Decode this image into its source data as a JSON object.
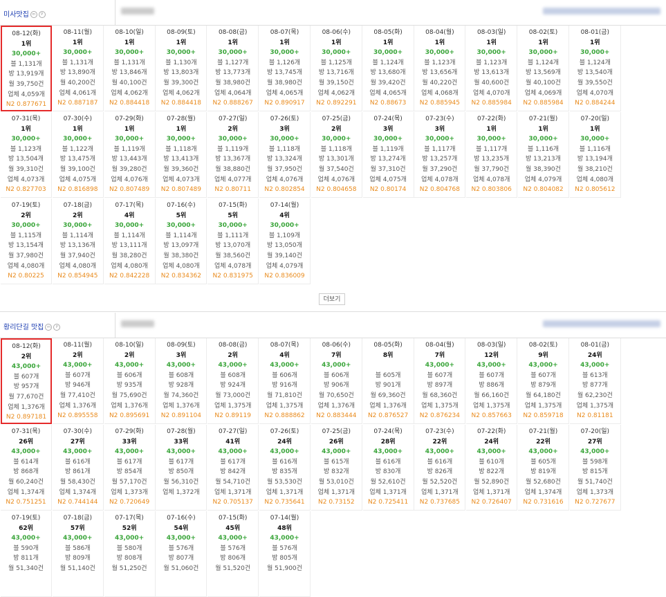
{
  "sections": [
    {
      "keyword": "미사맛집",
      "icon_m": "m",
      "icon_p": "P",
      "more_label": "더보기",
      "cells": [
        {
          "date": "08-12(화)",
          "rank": "1위",
          "count": "30,000+",
          "blog": "블 1,131개",
          "bang": "방 13,919개",
          "month": "월 39,750건",
          "biz": "업체 4,059개",
          "n2": "N2 0.877671"
        },
        {
          "date": "08-11(월)",
          "rank": "1위",
          "count": "30,000+",
          "blog": "블 1,131개",
          "bang": "방 13,890개",
          "month": "월 40,200건",
          "biz": "업체 4,061개",
          "n2": "N2 0.887187"
        },
        {
          "date": "08-10(일)",
          "rank": "1위",
          "count": "30,000+",
          "blog": "블 1,131개",
          "bang": "방 13,846개",
          "month": "월 40,100건",
          "biz": "업체 4,062개",
          "n2": "N2 0.884418"
        },
        {
          "date": "08-09(토)",
          "rank": "1위",
          "count": "30,000+",
          "blog": "블 1,130개",
          "bang": "방 13,803개",
          "month": "월 39,300건",
          "biz": "업체 4,062개",
          "n2": "N2 0.884418"
        },
        {
          "date": "08-08(금)",
          "rank": "1위",
          "count": "30,000+",
          "blog": "블 1,127개",
          "bang": "방 13,773개",
          "month": "월 38,980건",
          "biz": "업체 4,064개",
          "n2": "N2 0.888267"
        },
        {
          "date": "08-07(목)",
          "rank": "1위",
          "count": "30,000+",
          "blog": "블 1,126개",
          "bang": "방 13,745개",
          "month": "월 38,980건",
          "biz": "업체 4,065개",
          "n2": "N2 0.890917"
        },
        {
          "date": "08-06(수)",
          "rank": "1위",
          "count": "30,000+",
          "blog": "블 1,125개",
          "bang": "방 13,716개",
          "month": "월 39,150건",
          "biz": "업체 4,062개",
          "n2": "N2 0.892291"
        },
        {
          "date": "08-05(화)",
          "rank": "1위",
          "count": "30,000+",
          "blog": "블 1,124개",
          "bang": "방 13,680개",
          "month": "월 39,420건",
          "biz": "업체 4,065개",
          "n2": "N2 0.88673"
        },
        {
          "date": "08-04(월)",
          "rank": "1위",
          "count": "30,000+",
          "blog": "블 1,123개",
          "bang": "방 13,656개",
          "month": "월 40,220건",
          "biz": "업체 4,068개",
          "n2": "N2 0.885945"
        },
        {
          "date": "08-03(일)",
          "rank": "1위",
          "count": "30,000+",
          "blog": "블 1,123개",
          "bang": "방 13,613개",
          "month": "월 40,600건",
          "biz": "업체 4,070개",
          "n2": "N2 0.885984"
        },
        {
          "date": "08-02(토)",
          "rank": "1위",
          "count": "30,000+",
          "blog": "블 1,124개",
          "bang": "방 13,569개",
          "month": "월 40,100건",
          "biz": "업체 4,069개",
          "n2": "N2 0.885984"
        },
        {
          "date": "08-01(금)",
          "rank": "1위",
          "count": "30,000+",
          "blog": "블 1,124개",
          "bang": "방 13,540개",
          "month": "월 39,550건",
          "biz": "업체 4,070개",
          "n2": "N2 0.884244"
        },
        {
          "date": "07-31(목)",
          "rank": "1위",
          "count": "30,000+",
          "blog": "블 1,123개",
          "bang": "방 13,504개",
          "month": "월 39,310건",
          "biz": "업체 4,073개",
          "n2": "N2 0.827703"
        },
        {
          "date": "07-30(수)",
          "rank": "1위",
          "count": "30,000+",
          "blog": "블 1,122개",
          "bang": "방 13,475개",
          "month": "월 39,100건",
          "biz": "업체 4,075개",
          "n2": "N2 0.816898"
        },
        {
          "date": "07-29(화)",
          "rank": "1위",
          "count": "30,000+",
          "blog": "블 1,119개",
          "bang": "방 13,443개",
          "month": "월 39,280건",
          "biz": "업체 4,076개",
          "n2": "N2 0.807489"
        },
        {
          "date": "07-28(월)",
          "rank": "1위",
          "count": "30,000+",
          "blog": "블 1,118개",
          "bang": "방 13,413개",
          "month": "월 39,360건",
          "biz": "업체 4,073개",
          "n2": "N2 0.807489"
        },
        {
          "date": "07-27(일)",
          "rank": "2위",
          "count": "30,000+",
          "blog": "블 1,119개",
          "bang": "방 13,367개",
          "month": "월 38,880건",
          "biz": "업체 4,077개",
          "n2": "N2 0.80711"
        },
        {
          "date": "07-26(토)",
          "rank": "3위",
          "count": "30,000+",
          "blog": "블 1,118개",
          "bang": "방 13,324개",
          "month": "월 37,950건",
          "biz": "업체 4,076개",
          "n2": "N2 0.802854"
        },
        {
          "date": "07-25(금)",
          "rank": "2위",
          "count": "30,000+",
          "blog": "블 1,118개",
          "bang": "방 13,301개",
          "month": "월 37,540건",
          "biz": "업체 4,076개",
          "n2": "N2 0.804658"
        },
        {
          "date": "07-24(목)",
          "rank": "3위",
          "count": "30,000+",
          "blog": "블 1,119개",
          "bang": "방 13,274개",
          "month": "월 37,310건",
          "biz": "업체 4,075개",
          "n2": "N2 0.80174"
        },
        {
          "date": "07-23(수)",
          "rank": "3위",
          "count": "30,000+",
          "blog": "블 1,117개",
          "bang": "방 13,257개",
          "month": "월 37,290건",
          "biz": "업체 4,078개",
          "n2": "N2 0.804768"
        },
        {
          "date": "07-22(화)",
          "rank": "1위",
          "count": "30,000+",
          "blog": "블 1,117개",
          "bang": "방 13,235개",
          "month": "월 37,790건",
          "biz": "업체 4,078개",
          "n2": "N2 0.803806"
        },
        {
          "date": "07-21(월)",
          "rank": "1위",
          "count": "30,000+",
          "blog": "블 1,116개",
          "bang": "방 13,213개",
          "month": "월 38,390건",
          "biz": "업체 4,079개",
          "n2": "N2 0.804082"
        },
        {
          "date": "07-20(일)",
          "rank": "1위",
          "count": "30,000+",
          "blog": "블 1,116개",
          "bang": "방 13,194개",
          "month": "월 38,210건",
          "biz": "업체 4,080개",
          "n2": "N2 0.805612"
        },
        {
          "date": "07-19(토)",
          "rank": "2위",
          "count": "30,000+",
          "blog": "블 1,115개",
          "bang": "방 13,154개",
          "month": "월 37,980건",
          "biz": "업체 4,080개",
          "n2": "N2 0.80225"
        },
        {
          "date": "07-18(금)",
          "rank": "2위",
          "count": "30,000+",
          "blog": "블 1,114개",
          "bang": "방 13,136개",
          "month": "월 37,940건",
          "biz": "업체 4,080개",
          "n2": "N2 0.854945"
        },
        {
          "date": "07-17(목)",
          "rank": "4위",
          "count": "30,000+",
          "blog": "블 1,114개",
          "bang": "방 13,111개",
          "month": "월 38,280건",
          "biz": "업체 4,080개",
          "n2": "N2 0.842228"
        },
        {
          "date": "07-16(수)",
          "rank": "5위",
          "count": "30,000+",
          "blog": "블 1,114개",
          "bang": "방 13,097개",
          "month": "월 38,380건",
          "biz": "업체 4,080개",
          "n2": "N2 0.834362"
        },
        {
          "date": "07-15(화)",
          "rank": "5위",
          "count": "30,000+",
          "blog": "블 1,111개",
          "bang": "방 13,070개",
          "month": "월 38,560건",
          "biz": "업체 4,078개",
          "n2": "N2 0.831975"
        },
        {
          "date": "07-14(월)",
          "rank": "4위",
          "count": "30,000+",
          "blog": "블 1,109개",
          "bang": "방 13,050개",
          "month": "월 39,140건",
          "biz": "업체 4,079개",
          "n2": "N2 0.836009"
        }
      ]
    },
    {
      "keyword": "황리단길 맛집",
      "icon_m": "m",
      "icon_p": "P",
      "cells": [
        {
          "date": "08-12(화)",
          "rank": "2위",
          "count": "43,000+",
          "blog": "블 607개",
          "bang": "방 957개",
          "month": "월 77,670건",
          "biz": "업체 1,376개",
          "n2": "N2 0.897181"
        },
        {
          "date": "08-11(월)",
          "rank": "2위",
          "count": "43,000+",
          "blog": "블 607개",
          "bang": "방 946개",
          "month": "월 77,410건",
          "biz": "업체 1,376개",
          "n2": "N2 0.895558"
        },
        {
          "date": "08-10(일)",
          "rank": "2위",
          "count": "43,000+",
          "blog": "블 606개",
          "bang": "방 935개",
          "month": "월 75,690건",
          "biz": "업체 1,376개",
          "n2": "N2 0.895691"
        },
        {
          "date": "08-09(토)",
          "rank": "3위",
          "count": "43,000+",
          "blog": "블 608개",
          "bang": "방 928개",
          "month": "월 74,360건",
          "biz": "업체 1,376개",
          "n2": "N2 0.891104"
        },
        {
          "date": "08-08(금)",
          "rank": "2위",
          "count": "43,000+",
          "blog": "블 608개",
          "bang": "방 924개",
          "month": "월 73,000건",
          "biz": "업체 1,375개",
          "n2": "N2 0.89119"
        },
        {
          "date": "08-07(목)",
          "rank": "4위",
          "count": "43,000+",
          "blog": "블 606개",
          "bang": "방 916개",
          "month": "월 71,810건",
          "biz": "업체 1,375개",
          "n2": "N2 0.888862"
        },
        {
          "date": "08-06(수)",
          "rank": "7위",
          "count": "43,000+",
          "blog": "블 606개",
          "bang": "방 906개",
          "month": "월 70,650건",
          "biz": "업체 1,376개",
          "n2": "N2 0.883444"
        },
        {
          "date": "08-05(화)",
          "rank": "8위",
          "count": "",
          "blog": "블 605개",
          "bang": "방 901개",
          "month": "월 69,360건",
          "biz": "업체 1,376개",
          "n2": "N2 0.876527"
        },
        {
          "date": "08-04(월)",
          "rank": "7위",
          "count": "43,000+",
          "blog": "블 607개",
          "bang": "방 897개",
          "month": "월 68,360건",
          "biz": "업체 1,375개",
          "n2": "N2 0.876234"
        },
        {
          "date": "08-03(일)",
          "rank": "12위",
          "count": "43,000+",
          "blog": "블 607개",
          "bang": "방 886개",
          "month": "월 66,160건",
          "biz": "업체 1,375개",
          "n2": "N2 0.857663"
        },
        {
          "date": "08-02(토)",
          "rank": "9위",
          "count": "43,000+",
          "blog": "블 607개",
          "bang": "방 879개",
          "month": "월 64,180건",
          "biz": "업체 1,375개",
          "n2": "N2 0.859718"
        },
        {
          "date": "08-01(금)",
          "rank": "24위",
          "count": "43,000+",
          "blog": "블 613개",
          "bang": "방 877개",
          "month": "월 62,230건",
          "biz": "업체 1,375개",
          "n2": "N2 0.81181"
        },
        {
          "date": "07-31(목)",
          "rank": "26위",
          "count": "43,000+",
          "blog": "블 614개",
          "bang": "방 868개",
          "month": "월 60,240건",
          "biz": "업체 1,374개",
          "n2": "N2 0.751251"
        },
        {
          "date": "07-30(수)",
          "rank": "27위",
          "count": "43,000+",
          "blog": "블 616개",
          "bang": "방 861개",
          "month": "월 58,430건",
          "biz": "업체 1,374개",
          "n2": "N2 0.744144"
        },
        {
          "date": "07-29(화)",
          "rank": "33위",
          "count": "43,000+",
          "blog": "블 617개",
          "bang": "방 854개",
          "month": "월 57,170건",
          "biz": "업체 1,373개",
          "n2": "N2 0.720649"
        },
        {
          "date": "07-28(월)",
          "rank": "33위",
          "count": "43,000+",
          "blog": "블 617개",
          "bang": "방 850개",
          "month": "월 56,310건",
          "biz": "업체 1,372개",
          "n2": ""
        },
        {
          "date": "07-27(일)",
          "rank": "41위",
          "count": "43,000+",
          "blog": "블 617개",
          "bang": "방 842개",
          "month": "월 54,710건",
          "biz": "업체 1,371개",
          "n2": "N2 0.705137"
        },
        {
          "date": "07-26(토)",
          "rank": "24위",
          "count": "43,000+",
          "blog": "블 616개",
          "bang": "방 835개",
          "month": "월 53,530건",
          "biz": "업체 1,371개",
          "n2": "N2 0.735641"
        },
        {
          "date": "07-25(금)",
          "rank": "26위",
          "count": "43,000+",
          "blog": "블 615개",
          "bang": "방 832개",
          "month": "월 53,010건",
          "biz": "업체 1,371개",
          "n2": "N2 0.73152"
        },
        {
          "date": "07-24(목)",
          "rank": "28위",
          "count": "43,000+",
          "blog": "블 616개",
          "bang": "방 830개",
          "month": "월 52,610건",
          "biz": "업체 1,371개",
          "n2": "N2 0.725411"
        },
        {
          "date": "07-23(수)",
          "rank": "22위",
          "count": "43,000+",
          "blog": "블 616개",
          "bang": "방 826개",
          "month": "월 52,520건",
          "biz": "업체 1,371개",
          "n2": "N2 0.737685"
        },
        {
          "date": "07-22(화)",
          "rank": "24위",
          "count": "43,000+",
          "blog": "블 610개",
          "bang": "방 822개",
          "month": "월 52,890건",
          "biz": "업체 1,371개",
          "n2": "N2 0.726407"
        },
        {
          "date": "07-21(월)",
          "rank": "22위",
          "count": "43,000+",
          "blog": "블 605개",
          "bang": "방 819개",
          "month": "월 52,680건",
          "biz": "업체 1,374개",
          "n2": "N2 0.731616"
        },
        {
          "date": "07-20(일)",
          "rank": "27위",
          "count": "43,000+",
          "blog": "블 598개",
          "bang": "방 815개",
          "month": "월 51,740건",
          "biz": "업체 1,373개",
          "n2": "N2 0.727677"
        },
        {
          "date": "07-19(토)",
          "rank": "62위",
          "count": "43,000+",
          "blog": "블 590개",
          "bang": "방 811개",
          "month": "월 51,340건",
          "biz": "",
          "n2": ""
        },
        {
          "date": "07-18(금)",
          "rank": "57위",
          "count": "43,000+",
          "blog": "블 586개",
          "bang": "방 809개",
          "month": "월 51,140건",
          "biz": "",
          "n2": ""
        },
        {
          "date": "07-17(목)",
          "rank": "52위",
          "count": "43,000+",
          "blog": "블 580개",
          "bang": "방 808개",
          "month": "월 51,250건",
          "biz": "",
          "n2": ""
        },
        {
          "date": "07-16(수)",
          "rank": "54위",
          "count": "43,000+",
          "blog": "블 576개",
          "bang": "방 807개",
          "month": "월 51,060건",
          "biz": "",
          "n2": ""
        },
        {
          "date": "07-15(화)",
          "rank": "45위",
          "count": "43,000+",
          "blog": "블 576개",
          "bang": "방 806개",
          "month": "월 51,520건",
          "biz": "",
          "n2": ""
        },
        {
          "date": "07-14(월)",
          "rank": "48위",
          "count": "43,000+",
          "blog": "블 576개",
          "bang": "방 805개",
          "month": "월 51,900건",
          "biz": "",
          "n2": ""
        }
      ]
    }
  ]
}
